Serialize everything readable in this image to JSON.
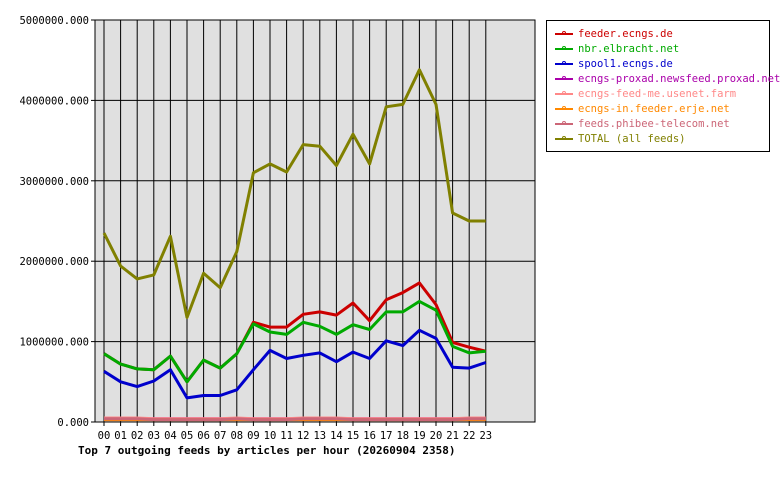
{
  "chart_data": {
    "type": "line",
    "title": "Top 7 outgoing feeds by articles per hour (20260904 2358)",
    "xlabel": "",
    "ylabel": "",
    "categories": [
      "00",
      "01",
      "02",
      "03",
      "04",
      "05",
      "06",
      "07",
      "08",
      "09",
      "10",
      "11",
      "12",
      "13",
      "14",
      "15",
      "16",
      "17",
      "18",
      "19",
      "20",
      "21",
      "22",
      "23"
    ],
    "y_ticks": [
      "0.000",
      "1000000.000",
      "2000000.000",
      "3000000.000",
      "4000000.000",
      "5000000.000"
    ],
    "ylim": [
      0,
      5000000
    ],
    "grid": true,
    "legend_position": "right",
    "series": [
      {
        "name": "feeder.ecngs.de",
        "color": "#cc0000",
        "values": [
          850000,
          720000,
          660000,
          650000,
          820000,
          500000,
          770000,
          670000,
          850000,
          1240000,
          1180000,
          1180000,
          1340000,
          1370000,
          1330000,
          1480000,
          1260000,
          1520000,
          1610000,
          1730000,
          1460000,
          990000,
          930000,
          880000
        ]
      },
      {
        "name": "nbr.elbracht.net",
        "color": "#00aa00",
        "values": [
          850000,
          720000,
          660000,
          650000,
          820000,
          500000,
          770000,
          670000,
          850000,
          1220000,
          1120000,
          1090000,
          1240000,
          1190000,
          1090000,
          1210000,
          1150000,
          1370000,
          1370000,
          1500000,
          1390000,
          940000,
          860000,
          880000
        ]
      },
      {
        "name": "spool1.ecngs.de",
        "color": "#0000cc",
        "values": [
          630000,
          500000,
          440000,
          510000,
          650000,
          300000,
          330000,
          330000,
          400000,
          650000,
          890000,
          790000,
          830000,
          860000,
          750000,
          870000,
          790000,
          1010000,
          950000,
          1140000,
          1040000,
          680000,
          670000,
          740000
        ]
      },
      {
        "name": "ecngs-proxad.newsfeed.proxad.net",
        "color": "#aa00aa",
        "values": [
          40000,
          40000,
          40000,
          40000,
          40000,
          40000,
          40000,
          40000,
          40000,
          40000,
          40000,
          40000,
          40000,
          40000,
          40000,
          40000,
          40000,
          40000,
          40000,
          40000,
          40000,
          40000,
          40000,
          40000
        ]
      },
      {
        "name": "ecngs-feed-me.usenet.farm",
        "color": "#ff8888",
        "values": [
          50000,
          50000,
          50000,
          40000,
          40000,
          40000,
          40000,
          40000,
          50000,
          40000,
          40000,
          40000,
          50000,
          50000,
          50000,
          40000,
          40000,
          40000,
          40000,
          40000,
          40000,
          40000,
          50000,
          50000
        ]
      },
      {
        "name": "ecngs-in.feeder.erje.net",
        "color": "#ff8800",
        "values": [
          30000,
          30000,
          30000,
          30000,
          30000,
          30000,
          30000,
          30000,
          30000,
          30000,
          30000,
          30000,
          30000,
          30000,
          30000,
          30000,
          30000,
          30000,
          30000,
          30000,
          30000,
          30000,
          30000,
          30000
        ]
      },
      {
        "name": "feeds.phibee-telecom.net",
        "color": "#cc6677",
        "values": [
          40000,
          40000,
          40000,
          30000,
          30000,
          30000,
          30000,
          30000,
          40000,
          30000,
          30000,
          30000,
          40000,
          40000,
          40000,
          30000,
          30000,
          30000,
          30000,
          30000,
          30000,
          30000,
          40000,
          40000
        ]
      },
      {
        "name": "TOTAL (all feeds)",
        "color": "#808000",
        "values": [
          2350000,
          1940000,
          1780000,
          1830000,
          2310000,
          1300000,
          1850000,
          1670000,
          2120000,
          3100000,
          3210000,
          3110000,
          3450000,
          3430000,
          3190000,
          3580000,
          3210000,
          3920000,
          3950000,
          4380000,
          3950000,
          2600000,
          2500000,
          2500000
        ]
      }
    ]
  }
}
